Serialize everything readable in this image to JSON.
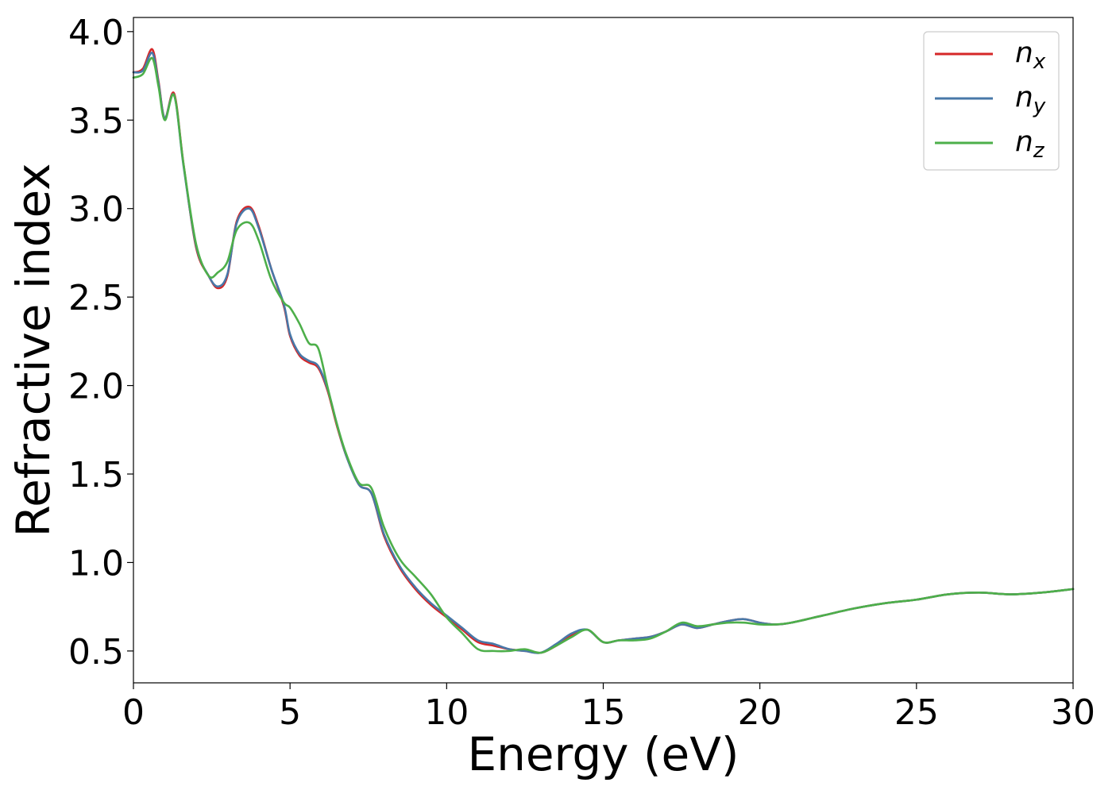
{
  "chart_data": {
    "type": "line",
    "xlabel": "Energy (eV)",
    "ylabel": "Refractive index",
    "xlim": [
      0,
      30
    ],
    "ylim": [
      0.32,
      4.08
    ],
    "xticks": [
      "0",
      "5",
      "10",
      "15",
      "20",
      "25",
      "30"
    ],
    "yticks": [
      "0.5",
      "1.0",
      "1.5",
      "2.0",
      "2.5",
      "3.0",
      "3.5",
      "4.0"
    ],
    "grid": false,
    "legend_position": "top-right",
    "series": [
      {
        "name": "n",
        "subscript": "x",
        "color": "#d62728",
        "x": [
          0,
          0.3,
          0.6,
          0.8,
          1.0,
          1.3,
          1.6,
          2.0,
          2.4,
          2.7,
          3.0,
          3.3,
          3.7,
          4.0,
          4.4,
          4.8,
          5.0,
          5.3,
          5.6,
          5.9,
          6.2,
          6.5,
          6.8,
          7.2,
          7.6,
          8.0,
          8.5,
          9.0,
          9.5,
          10.0,
          10.5,
          11.0,
          11.5,
          12.0,
          12.5,
          13.0,
          13.5,
          14.0,
          14.5,
          15.0,
          15.5,
          16.0,
          16.5,
          17.0,
          17.5,
          18.0,
          18.5,
          19.0,
          19.5,
          20.0,
          20.5,
          21.0,
          22.0,
          23.0,
          24.0,
          25.0,
          26.0,
          27.0,
          28.0,
          29.0,
          30.0
        ],
        "y": [
          3.77,
          3.79,
          3.9,
          3.72,
          3.51,
          3.65,
          3.25,
          2.78,
          2.62,
          2.55,
          2.62,
          2.93,
          3.01,
          2.9,
          2.66,
          2.45,
          2.28,
          2.17,
          2.13,
          2.1,
          1.97,
          1.77,
          1.6,
          1.44,
          1.39,
          1.15,
          0.97,
          0.85,
          0.76,
          0.69,
          0.62,
          0.55,
          0.53,
          0.51,
          0.5,
          0.49,
          0.53,
          0.59,
          0.62,
          0.55,
          0.56,
          0.57,
          0.58,
          0.61,
          0.65,
          0.63,
          0.65,
          0.67,
          0.68,
          0.66,
          0.65,
          0.66,
          0.7,
          0.74,
          0.77,
          0.79,
          0.82,
          0.83,
          0.82,
          0.83,
          0.85
        ]
      },
      {
        "name": "n",
        "subscript": "y",
        "color": "#4878a8",
        "x": [
          0,
          0.3,
          0.6,
          0.8,
          1.0,
          1.3,
          1.6,
          2.0,
          2.4,
          2.7,
          3.0,
          3.3,
          3.7,
          4.0,
          4.4,
          4.8,
          5.0,
          5.3,
          5.6,
          5.9,
          6.2,
          6.5,
          6.8,
          7.2,
          7.6,
          8.0,
          8.5,
          9.0,
          9.5,
          10.0,
          10.5,
          11.0,
          11.5,
          12.0,
          12.5,
          13.0,
          13.5,
          14.0,
          14.5,
          15.0,
          15.5,
          16.0,
          16.5,
          17.0,
          17.5,
          18.0,
          18.5,
          19.0,
          19.5,
          20.0,
          20.5,
          21.0,
          22.0,
          23.0,
          24.0,
          25.0,
          26.0,
          27.0,
          28.0,
          29.0,
          30.0
        ],
        "y": [
          3.77,
          3.78,
          3.88,
          3.71,
          3.51,
          3.64,
          3.24,
          2.79,
          2.62,
          2.56,
          2.63,
          2.92,
          3.0,
          2.89,
          2.66,
          2.46,
          2.29,
          2.18,
          2.14,
          2.11,
          1.98,
          1.78,
          1.6,
          1.44,
          1.39,
          1.16,
          0.98,
          0.86,
          0.77,
          0.7,
          0.63,
          0.56,
          0.54,
          0.51,
          0.5,
          0.49,
          0.54,
          0.6,
          0.62,
          0.55,
          0.56,
          0.57,
          0.58,
          0.61,
          0.65,
          0.63,
          0.65,
          0.67,
          0.68,
          0.66,
          0.65,
          0.66,
          0.7,
          0.74,
          0.77,
          0.79,
          0.82,
          0.83,
          0.82,
          0.83,
          0.85
        ]
      },
      {
        "name": "n",
        "subscript": "z",
        "color": "#4daf4a",
        "x": [
          0,
          0.3,
          0.6,
          0.8,
          1.0,
          1.3,
          1.6,
          2.0,
          2.4,
          2.7,
          3.0,
          3.3,
          3.7,
          4.0,
          4.4,
          4.8,
          5.0,
          5.3,
          5.6,
          5.9,
          6.2,
          6.5,
          6.8,
          7.2,
          7.6,
          8.0,
          8.5,
          9.0,
          9.5,
          10.0,
          10.5,
          11.0,
          11.5,
          12.0,
          12.5,
          13.0,
          13.5,
          14.0,
          14.5,
          15.0,
          15.5,
          16.0,
          16.5,
          17.0,
          17.5,
          18.0,
          18.5,
          19.0,
          19.5,
          20.0,
          20.5,
          21.0,
          22.0,
          23.0,
          24.0,
          25.0,
          26.0,
          27.0,
          28.0,
          29.0,
          30.0
        ],
        "y": [
          3.74,
          3.76,
          3.85,
          3.69,
          3.5,
          3.64,
          3.25,
          2.8,
          2.62,
          2.64,
          2.7,
          2.88,
          2.92,
          2.82,
          2.6,
          2.47,
          2.44,
          2.35,
          2.24,
          2.21,
          1.99,
          1.78,
          1.61,
          1.45,
          1.42,
          1.2,
          1.02,
          0.92,
          0.82,
          0.69,
          0.6,
          0.51,
          0.5,
          0.5,
          0.51,
          0.49,
          0.53,
          0.58,
          0.62,
          0.55,
          0.56,
          0.56,
          0.57,
          0.61,
          0.66,
          0.64,
          0.65,
          0.66,
          0.66,
          0.65,
          0.65,
          0.66,
          0.7,
          0.74,
          0.77,
          0.79,
          0.82,
          0.83,
          0.82,
          0.83,
          0.85
        ]
      }
    ]
  }
}
